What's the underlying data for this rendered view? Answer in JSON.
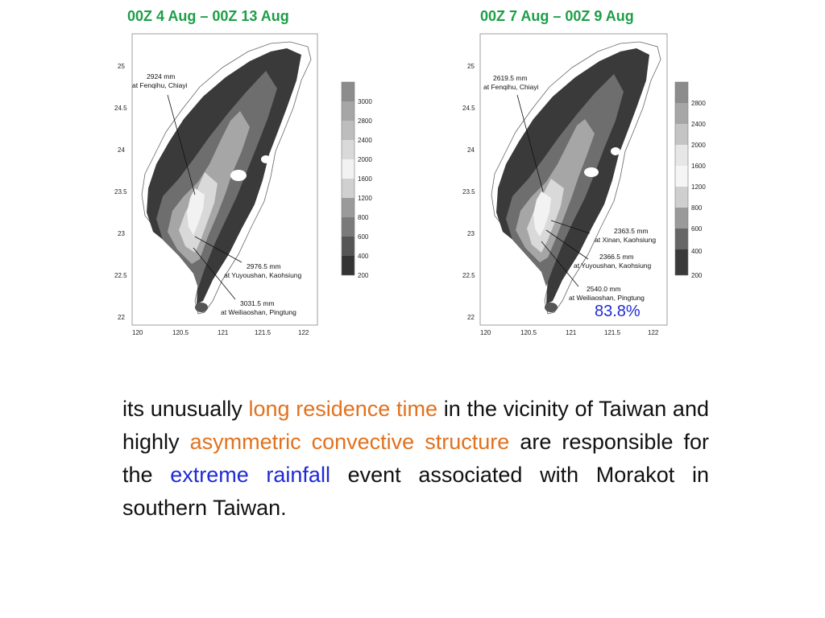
{
  "titles": {
    "left": "00Z 4 Aug – 00Z 13 Aug",
    "right": "00Z 7 Aug – 00Z 9 Aug"
  },
  "colors": {
    "title_green": "#1e9e48",
    "highlight_orange": "#e2711d",
    "highlight_blue": "#1f2ad6"
  },
  "left_map": {
    "y_ticks": [
      "25",
      "24.5",
      "24",
      "23.5",
      "23",
      "22.5",
      "22"
    ],
    "x_ticks": [
      "120",
      "120.5",
      "121",
      "121.5",
      "122"
    ],
    "colorbar_labels": [
      "3000",
      "2800",
      "2400",
      "2000",
      "1600",
      "1200",
      "800",
      "600",
      "400",
      "200"
    ],
    "annotations": [
      {
        "line1": "2924 mm",
        "line2": "at Fenqihu, Chiayi"
      },
      {
        "line1": "2976.5 mm",
        "line2": "at Yuyoushan, Kaohsiung"
      },
      {
        "line1": "3031.5 mm",
        "line2": "at Weiliaoshan, Pingtung"
      }
    ]
  },
  "right_map": {
    "y_ticks": [
      "25",
      "24.5",
      "24",
      "23.5",
      "23",
      "22.5",
      "22"
    ],
    "x_ticks": [
      "120",
      "120.5",
      "121",
      "121.5",
      "122"
    ],
    "colorbar_labels": [
      "2800",
      "2400",
      "2000",
      "1600",
      "1200",
      "800",
      "600",
      "400",
      "200"
    ],
    "annotations": [
      {
        "line1": "2619.5 mm",
        "line2": "at Fenqihu, Chiayi"
      },
      {
        "line1": "2363.5 mm",
        "line2": "at Xinan, Kaohsiung"
      },
      {
        "line1": "2366.5 mm",
        "line2": "at Yuyoushan, Kaohsiung"
      },
      {
        "line1": "2540.0 mm",
        "line2": "at Weiliaoshan, Pingtung"
      }
    ],
    "percent_label": "83.8%"
  },
  "body_text": {
    "p1": "its unusually ",
    "h1": "long residence time",
    "p2": " in the vicinity of Taiwan and highly ",
    "h2": "asymmetric convective structure",
    "p3": " are responsible for the ",
    "h3": "extreme rainfall",
    "p4": " event associated with Morakot in southern Taiwan."
  }
}
